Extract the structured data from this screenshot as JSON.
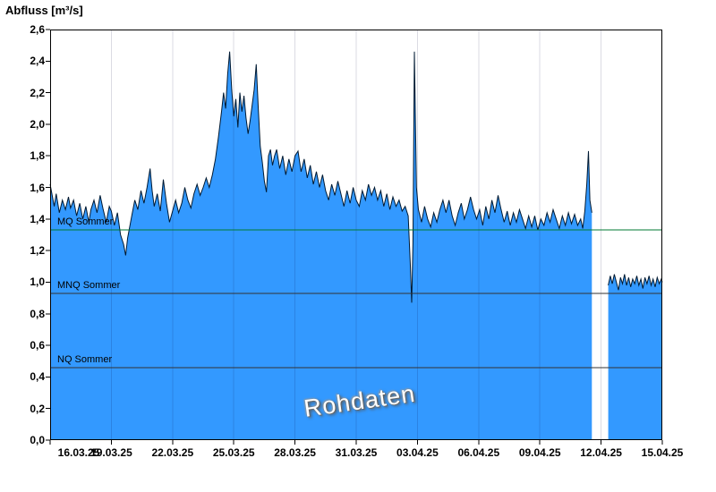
{
  "chart_data": {
    "type": "area",
    "title": "Abfluss [m³/s]",
    "watermark": "Rohdaten",
    "x_axis": {
      "max_day": 30,
      "ticks": [
        {
          "day": 0,
          "label": "16.03.25"
        },
        {
          "day": 3,
          "label": "19.03.25"
        },
        {
          "day": 6,
          "label": "22.03.25"
        },
        {
          "day": 9,
          "label": "25.03.25"
        },
        {
          "day": 12,
          "label": "28.03.25"
        },
        {
          "day": 15,
          "label": "31.03.25"
        },
        {
          "day": 18,
          "label": "03.04.25"
        },
        {
          "day": 21,
          "label": "06.04.25"
        },
        {
          "day": 24,
          "label": "09.04.25"
        },
        {
          "day": 27,
          "label": "12.04.25"
        },
        {
          "day": 30,
          "label": "15.04.25"
        }
      ]
    },
    "y_axis": {
      "min": 0,
      "max": 2.6,
      "step": 0.2,
      "labels": [
        "0,0",
        "0,2",
        "0,4",
        "0,6",
        "0,8",
        "1,0",
        "1,2",
        "1,4",
        "1,6",
        "1,8",
        "2,0",
        "2,2",
        "2,4",
        "2,6"
      ]
    },
    "reference_lines": [
      {
        "label": "MQ Sommer",
        "value": 1.33,
        "color": "#007a33"
      },
      {
        "label": "MNQ Sommer",
        "value": 0.93,
        "color": "#333333"
      },
      {
        "label": "NQ Sommer",
        "value": 0.46,
        "color": "#333333"
      }
    ],
    "series": [
      {
        "name": "Rohdaten",
        "fill": "#3399ff",
        "stroke": "#001a33",
        "segments": [
          [
            [
              0,
              1.62
            ],
            [
              0.1,
              1.55
            ],
            [
              0.2,
              1.48
            ],
            [
              0.3,
              1.56
            ],
            [
              0.45,
              1.44
            ],
            [
              0.6,
              1.52
            ],
            [
              0.75,
              1.46
            ],
            [
              0.9,
              1.54
            ],
            [
              1,
              1.47
            ],
            [
              1.15,
              1.52
            ],
            [
              1.3,
              1.42
            ],
            [
              1.45,
              1.5
            ],
            [
              1.6,
              1.4
            ],
            [
              1.75,
              1.48
            ],
            [
              1.9,
              1.38
            ],
            [
              2,
              1.46
            ],
            [
              2.15,
              1.52
            ],
            [
              2.3,
              1.44
            ],
            [
              2.45,
              1.55
            ],
            [
              2.6,
              1.46
            ],
            [
              2.75,
              1.38
            ],
            [
              2.9,
              1.48
            ],
            [
              3,
              1.45
            ],
            [
              3.15,
              1.36
            ],
            [
              3.3,
              1.44
            ],
            [
              3.45,
              1.3
            ],
            [
              3.6,
              1.24
            ],
            [
              3.7,
              1.17
            ],
            [
              3.8,
              1.28
            ],
            [
              3.9,
              1.35
            ],
            [
              4,
              1.42
            ],
            [
              4.15,
              1.52
            ],
            [
              4.3,
              1.46
            ],
            [
              4.45,
              1.58
            ],
            [
              4.6,
              1.5
            ],
            [
              4.75,
              1.6
            ],
            [
              4.9,
              1.72
            ],
            [
              5,
              1.58
            ],
            [
              5.1,
              1.48
            ],
            [
              5.25,
              1.56
            ],
            [
              5.4,
              1.45
            ],
            [
              5.55,
              1.65
            ],
            [
              5.7,
              1.5
            ],
            [
              5.85,
              1.38
            ],
            [
              6,
              1.45
            ],
            [
              6.15,
              1.52
            ],
            [
              6.3,
              1.44
            ],
            [
              6.45,
              1.5
            ],
            [
              6.6,
              1.6
            ],
            [
              6.75,
              1.52
            ],
            [
              6.9,
              1.47
            ],
            [
              7.05,
              1.56
            ],
            [
              7.2,
              1.62
            ],
            [
              7.35,
              1.55
            ],
            [
              7.5,
              1.6
            ],
            [
              7.65,
              1.66
            ],
            [
              7.8,
              1.6
            ],
            [
              7.95,
              1.68
            ],
            [
              8.1,
              1.78
            ],
            [
              8.25,
              1.92
            ],
            [
              8.4,
              2.08
            ],
            [
              8.5,
              2.2
            ],
            [
              8.6,
              2.1
            ],
            [
              8.7,
              2.32
            ],
            [
              8.8,
              2.46
            ],
            [
              8.9,
              2.22
            ],
            [
              9,
              2.05
            ],
            [
              9.1,
              2.16
            ],
            [
              9.2,
              1.98
            ],
            [
              9.3,
              2.2
            ],
            [
              9.4,
              2.08
            ],
            [
              9.5,
              2.18
            ],
            [
              9.6,
              2.04
            ],
            [
              9.7,
              1.94
            ],
            [
              9.8,
              2.02
            ],
            [
              9.9,
              2.12
            ],
            [
              10,
              2.22
            ],
            [
              10.1,
              2.38
            ],
            [
              10.2,
              2.1
            ],
            [
              10.3,
              1.86
            ],
            [
              10.4,
              1.76
            ],
            [
              10.5,
              1.64
            ],
            [
              10.6,
              1.57
            ],
            [
              10.7,
              1.8
            ],
            [
              10.8,
              1.84
            ],
            [
              10.9,
              1.74
            ],
            [
              11,
              1.8
            ],
            [
              11.1,
              1.84
            ],
            [
              11.25,
              1.72
            ],
            [
              11.4,
              1.8
            ],
            [
              11.55,
              1.68
            ],
            [
              11.7,
              1.78
            ],
            [
              11.85,
              1.7
            ],
            [
              12,
              1.8
            ],
            [
              12.15,
              1.83
            ],
            [
              12.3,
              1.7
            ],
            [
              12.45,
              1.78
            ],
            [
              12.6,
              1.66
            ],
            [
              12.75,
              1.74
            ],
            [
              12.9,
              1.62
            ],
            [
              13.05,
              1.7
            ],
            [
              13.2,
              1.6
            ],
            [
              13.35,
              1.68
            ],
            [
              13.5,
              1.58
            ],
            [
              13.65,
              1.52
            ],
            [
              13.8,
              1.62
            ],
            [
              13.95,
              1.55
            ],
            [
              14.1,
              1.64
            ],
            [
              14.25,
              1.56
            ],
            [
              14.4,
              1.48
            ],
            [
              14.55,
              1.58
            ],
            [
              14.7,
              1.5
            ],
            [
              14.85,
              1.6
            ],
            [
              15,
              1.52
            ],
            [
              15.15,
              1.48
            ],
            [
              15.3,
              1.58
            ],
            [
              15.45,
              1.52
            ],
            [
              15.6,
              1.62
            ],
            [
              15.75,
              1.55
            ],
            [
              15.9,
              1.6
            ],
            [
              16.05,
              1.52
            ],
            [
              16.2,
              1.58
            ],
            [
              16.35,
              1.48
            ],
            [
              16.5,
              1.56
            ],
            [
              16.65,
              1.46
            ],
            [
              16.8,
              1.54
            ],
            [
              16.95,
              1.48
            ],
            [
              17.1,
              1.52
            ],
            [
              17.25,
              1.45
            ],
            [
              17.4,
              1.48
            ],
            [
              17.55,
              1.42
            ],
            [
              17.65,
              1.12
            ],
            [
              17.72,
              0.87
            ],
            [
              17.78,
              1.25
            ],
            [
              17.85,
              2.46
            ],
            [
              17.95,
              1.6
            ],
            [
              18.05,
              1.46
            ],
            [
              18.2,
              1.38
            ],
            [
              18.35,
              1.48
            ],
            [
              18.5,
              1.4
            ],
            [
              18.65,
              1.35
            ],
            [
              18.8,
              1.44
            ],
            [
              18.95,
              1.38
            ],
            [
              19.1,
              1.46
            ],
            [
              19.25,
              1.52
            ],
            [
              19.4,
              1.44
            ],
            [
              19.55,
              1.52
            ],
            [
              19.7,
              1.42
            ],
            [
              19.85,
              1.36
            ],
            [
              20,
              1.44
            ],
            [
              20.15,
              1.5
            ],
            [
              20.3,
              1.4
            ],
            [
              20.45,
              1.46
            ],
            [
              20.6,
              1.54
            ],
            [
              20.75,
              1.46
            ],
            [
              20.9,
              1.4
            ],
            [
              21.05,
              1.46
            ],
            [
              21.2,
              1.36
            ],
            [
              21.35,
              1.48
            ],
            [
              21.5,
              1.4
            ],
            [
              21.65,
              1.52
            ],
            [
              21.8,
              1.44
            ],
            [
              21.95,
              1.55
            ],
            [
              22.1,
              1.46
            ],
            [
              22.25,
              1.38
            ],
            [
              22.4,
              1.45
            ],
            [
              22.55,
              1.36
            ],
            [
              22.7,
              1.44
            ],
            [
              22.85,
              1.38
            ],
            [
              23,
              1.46
            ],
            [
              23.15,
              1.4
            ],
            [
              23.3,
              1.34
            ],
            [
              23.45,
              1.42
            ],
            [
              23.6,
              1.35
            ],
            [
              23.75,
              1.42
            ],
            [
              23.9,
              1.33
            ],
            [
              24.05,
              1.4
            ],
            [
              24.2,
              1.36
            ],
            [
              24.35,
              1.44
            ],
            [
              24.5,
              1.38
            ],
            [
              24.65,
              1.46
            ],
            [
              24.8,
              1.4
            ],
            [
              24.95,
              1.34
            ],
            [
              25.1,
              1.42
            ],
            [
              25.25,
              1.36
            ],
            [
              25.4,
              1.44
            ],
            [
              25.55,
              1.37
            ],
            [
              25.7,
              1.43
            ],
            [
              25.85,
              1.36
            ],
            [
              26,
              1.4
            ],
            [
              26.1,
              1.34
            ],
            [
              26.2,
              1.45
            ],
            [
              26.3,
              1.62
            ],
            [
              26.38,
              1.83
            ],
            [
              26.45,
              1.52
            ],
            [
              26.55,
              1.44
            ]
          ],
          [
            [
              27.35,
              0.98
            ],
            [
              27.45,
              1.04
            ],
            [
              27.55,
              0.99
            ],
            [
              27.65,
              1.05
            ],
            [
              27.75,
              1
            ],
            [
              27.85,
              0.95
            ],
            [
              27.95,
              1.03
            ],
            [
              28.05,
              0.99
            ],
            [
              28.15,
              1.05
            ],
            [
              28.25,
              0.98
            ],
            [
              28.35,
              1.03
            ],
            [
              28.45,
              0.97
            ],
            [
              28.55,
              1.02
            ],
            [
              28.65,
              0.99
            ],
            [
              28.75,
              1.04
            ],
            [
              28.85,
              0.98
            ],
            [
              28.95,
              1.02
            ],
            [
              29.05,
              0.96
            ],
            [
              29.15,
              1.03
            ],
            [
              29.25,
              0.99
            ],
            [
              29.35,
              1.04
            ],
            [
              29.45,
              0.98
            ],
            [
              29.55,
              1.02
            ],
            [
              29.65,
              0.97
            ],
            [
              29.75,
              1.03
            ],
            [
              29.85,
              0.99
            ],
            [
              29.95,
              1.02
            ],
            [
              30,
              1
            ]
          ]
        ]
      }
    ]
  }
}
